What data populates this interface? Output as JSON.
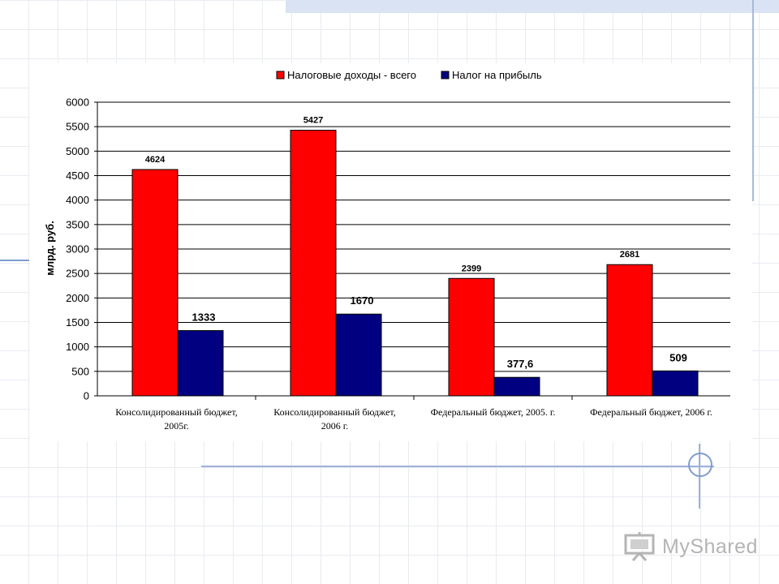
{
  "chart_data": {
    "type": "bar",
    "title": "",
    "xlabel": "",
    "ylabel": "млрд. руб.",
    "ylim": [
      0,
      6000
    ],
    "yticks": [
      0,
      500,
      1000,
      1500,
      2000,
      2500,
      3000,
      3500,
      4000,
      4500,
      5000,
      5500,
      6000
    ],
    "grid": true,
    "legend_position": "top",
    "categories": [
      [
        "Консолидированный бюджет,",
        "2005г."
      ],
      [
        "Консолидированный бюджет,",
        "2006 г."
      ],
      [
        "Федеральный бюджет, 2005. г."
      ],
      [
        "Федеральный бюджет, 2006 г."
      ]
    ],
    "series": [
      {
        "name": "Налоговые доходы - всего",
        "color": "#ff0000",
        "values": [
          4624,
          5427,
          2399,
          2681
        ],
        "labels": [
          "4624",
          "5427",
          "2399",
          "2681"
        ]
      },
      {
        "name": "Налог на прибыль",
        "color": "#000080",
        "values": [
          1333,
          1670,
          377.6,
          509
        ],
        "labels": [
          "1333",
          "1670",
          "377,6",
          "509"
        ]
      }
    ]
  },
  "watermark": {
    "text": "MyShared",
    "icon": "projector-icon"
  }
}
